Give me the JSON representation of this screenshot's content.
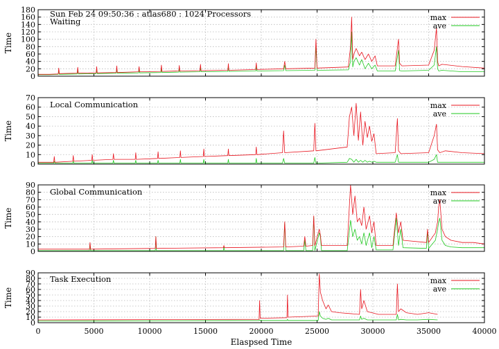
{
  "figure": {
    "header": "Sun Feb 24 09:50:36 : atlas680 : 1024 Processors",
    "xlabel": "Elaspsed Time"
  },
  "colors": {
    "max": "#e8141e",
    "ave": "#1ec81e"
  },
  "chart_data": [
    {
      "type": "line",
      "title": "Waiting",
      "ylabel": "Time",
      "xlim": [
        0,
        40000
      ],
      "ylim": [
        0,
        180
      ],
      "yticks": [
        0,
        20,
        40,
        60,
        80,
        100,
        120,
        140,
        160,
        180
      ],
      "grid": true,
      "legend": "top-right",
      "series": [
        {
          "name": "max",
          "x": [
            0,
            1000,
            1800,
            1850,
            1900,
            3500,
            3550,
            3600,
            5200,
            5250,
            5300,
            7000,
            7050,
            7100,
            9000,
            9050,
            9100,
            11000,
            11050,
            11100,
            12600,
            12650,
            12700,
            14500,
            14550,
            14600,
            17000,
            17050,
            17100,
            19500,
            19550,
            19600,
            22000,
            22100,
            22200,
            24800,
            24900,
            25000,
            27800,
            28000,
            28100,
            28200,
            28300,
            28500,
            28800,
            29000,
            29300,
            29600,
            29900,
            30200,
            30400,
            32000,
            32300,
            32400,
            32600,
            35000,
            35500,
            35700,
            35800,
            35900,
            36200,
            38000,
            40000
          ],
          "y": [
            5,
            5,
            6,
            22,
            7,
            8,
            24,
            8,
            9,
            26,
            9,
            10,
            28,
            10,
            12,
            26,
            12,
            13,
            30,
            13,
            14,
            29,
            14,
            15,
            32,
            15,
            16,
            34,
            16,
            18,
            36,
            18,
            20,
            40,
            20,
            22,
            100,
            22,
            25,
            80,
            160,
            45,
            60,
            75,
            55,
            65,
            45,
            60,
            40,
            55,
            28,
            28,
            100,
            35,
            28,
            30,
            70,
            130,
            40,
            28,
            32,
            26,
            22
          ]
        },
        {
          "name": "ave",
          "x": [
            0,
            1000,
            1800,
            1850,
            1900,
            3500,
            3550,
            3600,
            5200,
            5250,
            5300,
            7000,
            7050,
            7100,
            9000,
            9050,
            9100,
            11000,
            11050,
            11100,
            12600,
            12650,
            12700,
            14500,
            14550,
            14600,
            17000,
            17050,
            17100,
            19500,
            19550,
            19600,
            22000,
            22100,
            22200,
            24800,
            24900,
            25000,
            27800,
            28000,
            28100,
            28200,
            28300,
            28500,
            28800,
            29000,
            29300,
            29600,
            29900,
            30200,
            30400,
            32000,
            32300,
            32400,
            32600,
            35000,
            35500,
            35700,
            35800,
            35900,
            36200,
            38000,
            40000
          ],
          "y": [
            4,
            4,
            5,
            14,
            5,
            6,
            15,
            6,
            7,
            16,
            7,
            8,
            18,
            8,
            9,
            18,
            9,
            10,
            20,
            10,
            11,
            20,
            11,
            12,
            22,
            12,
            13,
            24,
            13,
            14,
            26,
            14,
            15,
            30,
            15,
            16,
            80,
            16,
            17,
            40,
            120,
            25,
            40,
            50,
            30,
            45,
            20,
            35,
            20,
            30,
            14,
            14,
            70,
            15,
            14,
            16,
            30,
            80,
            20,
            14,
            16,
            12,
            12
          ]
        }
      ]
    },
    {
      "type": "line",
      "title": "Local Communication",
      "ylabel": "Time",
      "xlim": [
        0,
        40000
      ],
      "ylim": [
        0,
        70
      ],
      "yticks": [
        0,
        10,
        20,
        30,
        40,
        50,
        60,
        70
      ],
      "grid": true,
      "legend": "top-right",
      "series": [
        {
          "name": "max",
          "x": [
            0,
            1400,
            1450,
            1500,
            3100,
            3150,
            3200,
            4800,
            4850,
            4900,
            6700,
            6750,
            6800,
            8700,
            8750,
            8800,
            10700,
            10750,
            10800,
            12700,
            12750,
            12800,
            14800,
            14850,
            14900,
            17000,
            17050,
            17100,
            19500,
            19550,
            19600,
            21900,
            22000,
            22100,
            24700,
            24800,
            24900,
            27700,
            27900,
            28100,
            28300,
            28500,
            28700,
            28900,
            29100,
            29300,
            29500,
            29700,
            29900,
            30100,
            30300,
            32000,
            32200,
            32300,
            32500,
            35000,
            35500,
            35700,
            35800,
            36000,
            36500,
            38000,
            40000
          ],
          "y": [
            2,
            2,
            8,
            2,
            3,
            9,
            3,
            4,
            10,
            4,
            5,
            11,
            5,
            5,
            12,
            5,
            6,
            13,
            6,
            7,
            14,
            7,
            8,
            16,
            8,
            9,
            16,
            9,
            10,
            18,
            10,
            12,
            35,
            12,
            14,
            43,
            14,
            18,
            50,
            60,
            30,
            64,
            25,
            55,
            20,
            45,
            28,
            40,
            24,
            32,
            11,
            12,
            48,
            14,
            11,
            12,
            30,
            42,
            15,
            12,
            14,
            12,
            11
          ]
        },
        {
          "name": "ave",
          "x": [
            0,
            1400,
            1450,
            1500,
            3100,
            3150,
            3200,
            4800,
            4850,
            4900,
            6700,
            6750,
            6800,
            8700,
            8750,
            8800,
            10700,
            10750,
            10800,
            12700,
            12750,
            12800,
            14800,
            14850,
            14900,
            17000,
            17050,
            17100,
            19500,
            19550,
            19600,
            21900,
            22000,
            22100,
            24700,
            24800,
            24900,
            27700,
            27900,
            28100,
            28300,
            28500,
            28700,
            28900,
            29100,
            29300,
            29500,
            29700,
            29900,
            30100,
            30300,
            32000,
            32200,
            32300,
            32500,
            35000,
            35500,
            35700,
            35800,
            36000,
            36500,
            38000,
            40000
          ],
          "y": [
            1,
            1,
            3,
            1,
            1,
            3,
            1,
            1,
            4,
            1,
            1,
            4,
            1,
            1,
            4,
            1,
            1,
            4,
            1,
            1,
            5,
            1,
            1,
            5,
            1,
            1,
            5,
            1,
            1,
            6,
            1,
            1,
            6,
            1,
            1,
            7,
            1,
            2,
            6,
            5,
            2,
            5,
            2,
            4,
            2,
            4,
            2,
            3,
            2,
            3,
            2,
            2,
            10,
            2,
            2,
            2,
            5,
            10,
            2,
            2,
            2,
            2,
            2
          ]
        }
      ]
    },
    {
      "type": "line",
      "title": "Global Communication",
      "ylabel": "Time",
      "xlim": [
        0,
        40000
      ],
      "ylim": [
        0,
        90
      ],
      "yticks": [
        0,
        10,
        20,
        30,
        40,
        50,
        60,
        70,
        80,
        90
      ],
      "grid": true,
      "legend": "top-right",
      "series": [
        {
          "name": "max",
          "x": [
            0,
            4600,
            4650,
            4700,
            10500,
            10550,
            10600,
            16600,
            16650,
            16700,
            22000,
            22100,
            22200,
            23800,
            23900,
            24000,
            24600,
            24700,
            24800,
            25200,
            25300,
            25400,
            27700,
            28000,
            28200,
            28400,
            28600,
            28800,
            29000,
            29200,
            29400,
            29700,
            29900,
            30100,
            30300,
            31800,
            32100,
            32300,
            32500,
            32700,
            34800,
            34900,
            35000,
            35600,
            35800,
            35900,
            36000,
            36200,
            36500,
            37000,
            38000,
            39000,
            40000
          ],
          "y": [
            3,
            3,
            12,
            3,
            4,
            20,
            4,
            5,
            8,
            5,
            6,
            40,
            6,
            7,
            20,
            7,
            8,
            48,
            8,
            30,
            22,
            8,
            8,
            90,
            50,
            75,
            40,
            45,
            35,
            60,
            30,
            48,
            25,
            40,
            8,
            8,
            52,
            25,
            40,
            15,
            12,
            30,
            12,
            25,
            40,
            60,
            70,
            30,
            20,
            15,
            12,
            12,
            10
          ]
        },
        {
          "name": "ave",
          "x": [
            0,
            4600,
            4650,
            4700,
            10500,
            10550,
            10600,
            16600,
            16650,
            16700,
            22000,
            22100,
            22200,
            23800,
            23900,
            24000,
            24600,
            24700,
            24800,
            25200,
            25300,
            25400,
            27700,
            28000,
            28200,
            28400,
            28600,
            28800,
            29000,
            29200,
            29400,
            29700,
            29900,
            30100,
            30300,
            31800,
            32100,
            32300,
            32500,
            32700,
            34800,
            34900,
            35000,
            35600,
            35800,
            35900,
            36000,
            36200,
            36500,
            37000,
            38000,
            39000,
            40000
          ],
          "y": [
            1,
            1,
            10,
            1,
            1,
            20,
            1,
            1,
            6,
            1,
            1,
            38,
            1,
            1,
            15,
            1,
            1,
            47,
            1,
            25,
            20,
            1,
            1,
            42,
            20,
            30,
            15,
            20,
            10,
            25,
            8,
            25,
            5,
            20,
            2,
            2,
            45,
            8,
            30,
            5,
            4,
            28,
            4,
            15,
            30,
            40,
            45,
            15,
            8,
            6,
            5,
            5,
            5
          ]
        }
      ]
    },
    {
      "type": "line",
      "title": "Task Execution",
      "ylabel": "Time",
      "xlim": [
        0,
        40000
      ],
      "ylim": [
        0,
        90
      ],
      "yticks": [
        0,
        10,
        20,
        30,
        40,
        50,
        60,
        70,
        80,
        90
      ],
      "grid": true,
      "legend": "top-right",
      "series": [
        {
          "name": "max",
          "x": [
            0,
            19800,
            19850,
            19900,
            22300,
            22350,
            22400,
            25100,
            25200,
            25300,
            25500,
            25800,
            26000,
            26300,
            27000,
            28800,
            28900,
            29000,
            29200,
            29500,
            30500,
            32100,
            32200,
            32300,
            32500,
            33000,
            34000,
            35000,
            35800
          ],
          "y": [
            5,
            6,
            40,
            8,
            9,
            50,
            10,
            12,
            88,
            55,
            40,
            25,
            32,
            20,
            18,
            15,
            60,
            25,
            40,
            20,
            15,
            15,
            70,
            20,
            25,
            18,
            15,
            18,
            15
          ]
        },
        {
          "name": "ave",
          "x": [
            0,
            19800,
            19850,
            19900,
            22300,
            22350,
            22400,
            25100,
            25200,
            25300,
            25500,
            25800,
            26000,
            26300,
            27000,
            28800,
            28900,
            29000,
            29200,
            29500,
            30500,
            32100,
            32200,
            32300,
            32500,
            33000,
            34000,
            35000,
            35800
          ],
          "y": [
            3,
            4,
            5,
            4,
            4,
            6,
            4,
            4,
            20,
            12,
            8,
            6,
            8,
            5,
            5,
            5,
            12,
            6,
            8,
            5,
            5,
            5,
            15,
            5,
            6,
            5,
            5,
            6,
            5
          ]
        }
      ]
    }
  ],
  "xaxis": {
    "ticks": [
      0,
      5000,
      10000,
      15000,
      20000,
      25000,
      30000,
      35000,
      40000
    ]
  }
}
